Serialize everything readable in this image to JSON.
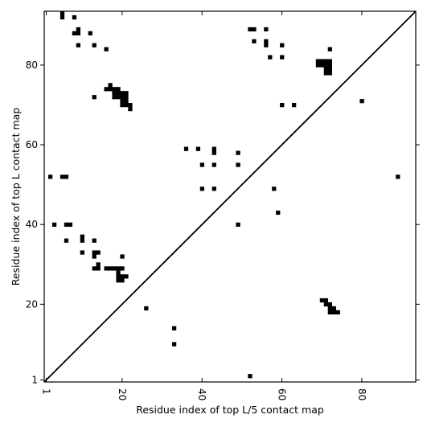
{
  "chart_data": {
    "type": "heatmap",
    "title": "",
    "xlabel": "Residue index of top L/5 contact map",
    "ylabel": "Residue index of top L contact map",
    "xlim": [
      0.5,
      93.5
    ],
    "ylim": [
      0.5,
      93.5
    ],
    "xticks": [
      1,
      20,
      40,
      60,
      80
    ],
    "yticks": [
      1,
      20,
      40,
      60,
      80
    ],
    "grid": false,
    "diagonal": true,
    "color": "#000000",
    "cells": [
      [
        5,
        93
      ],
      [
        5,
        92
      ],
      [
        8,
        92
      ],
      [
        9,
        89
      ],
      [
        9,
        88
      ],
      [
        8,
        88
      ],
      [
        12,
        88
      ],
      [
        9,
        85
      ],
      [
        13,
        85
      ],
      [
        16,
        84
      ],
      [
        52,
        89
      ],
      [
        53,
        89
      ],
      [
        56,
        89
      ],
      [
        53,
        86
      ],
      [
        56,
        86
      ],
      [
        56,
        85
      ],
      [
        60,
        85
      ],
      [
        57,
        82
      ],
      [
        60,
        82
      ],
      [
        72,
        84
      ],
      [
        80,
        71
      ],
      [
        60,
        70
      ],
      [
        63,
        70
      ],
      [
        13,
        72
      ],
      [
        16,
        74
      ],
      [
        17,
        74
      ],
      [
        17,
        75
      ],
      [
        18,
        74
      ],
      [
        19,
        74
      ],
      [
        18,
        73
      ],
      [
        19,
        73
      ],
      [
        20,
        73
      ],
      [
        21,
        73
      ],
      [
        18,
        72
      ],
      [
        19,
        72
      ],
      [
        20,
        72
      ],
      [
        21,
        72
      ],
      [
        20,
        71
      ],
      [
        21,
        71
      ],
      [
        20,
        70
      ],
      [
        21,
        70
      ],
      [
        22,
        70
      ],
      [
        22,
        69
      ],
      [
        69,
        81
      ],
      [
        70,
        81
      ],
      [
        71,
        81
      ],
      [
        72,
        81
      ],
      [
        69,
        80
      ],
      [
        70,
        80
      ],
      [
        71,
        80
      ],
      [
        72,
        80
      ],
      [
        71,
        79
      ],
      [
        72,
        79
      ],
      [
        71,
        78
      ],
      [
        72,
        78
      ],
      [
        36,
        59
      ],
      [
        39,
        59
      ],
      [
        43,
        59
      ],
      [
        43,
        58
      ],
      [
        49,
        58
      ],
      [
        40,
        55
      ],
      [
        43,
        55
      ],
      [
        49,
        55
      ],
      [
        2,
        52
      ],
      [
        5,
        52
      ],
      [
        6,
        52
      ],
      [
        89,
        52
      ],
      [
        40,
        49
      ],
      [
        43,
        49
      ],
      [
        58,
        49
      ],
      [
        59,
        43
      ],
      [
        3,
        40
      ],
      [
        6,
        40
      ],
      [
        7,
        40
      ],
      [
        49,
        40
      ],
      [
        10,
        37
      ],
      [
        10,
        36
      ],
      [
        6,
        36
      ],
      [
        13,
        36
      ],
      [
        10,
        33
      ],
      [
        13,
        33
      ],
      [
        14,
        33
      ],
      [
        13,
        32
      ],
      [
        20,
        32
      ],
      [
        14,
        30
      ],
      [
        13,
        29
      ],
      [
        14,
        29
      ],
      [
        16,
        29
      ],
      [
        17,
        29
      ],
      [
        18,
        29
      ],
      [
        19,
        29
      ],
      [
        20,
        29
      ],
      [
        19,
        28
      ],
      [
        19,
        27
      ],
      [
        20,
        27
      ],
      [
        21,
        27
      ],
      [
        19,
        26
      ],
      [
        20,
        26
      ],
      [
        26,
        19
      ],
      [
        70,
        21
      ],
      [
        71,
        21
      ],
      [
        71,
        20
      ],
      [
        72,
        20
      ],
      [
        72,
        19
      ],
      [
        73,
        19
      ],
      [
        72,
        18
      ],
      [
        73,
        18
      ],
      [
        74,
        18
      ],
      [
        33,
        14
      ],
      [
        33,
        10
      ],
      [
        52,
        2
      ]
    ]
  }
}
